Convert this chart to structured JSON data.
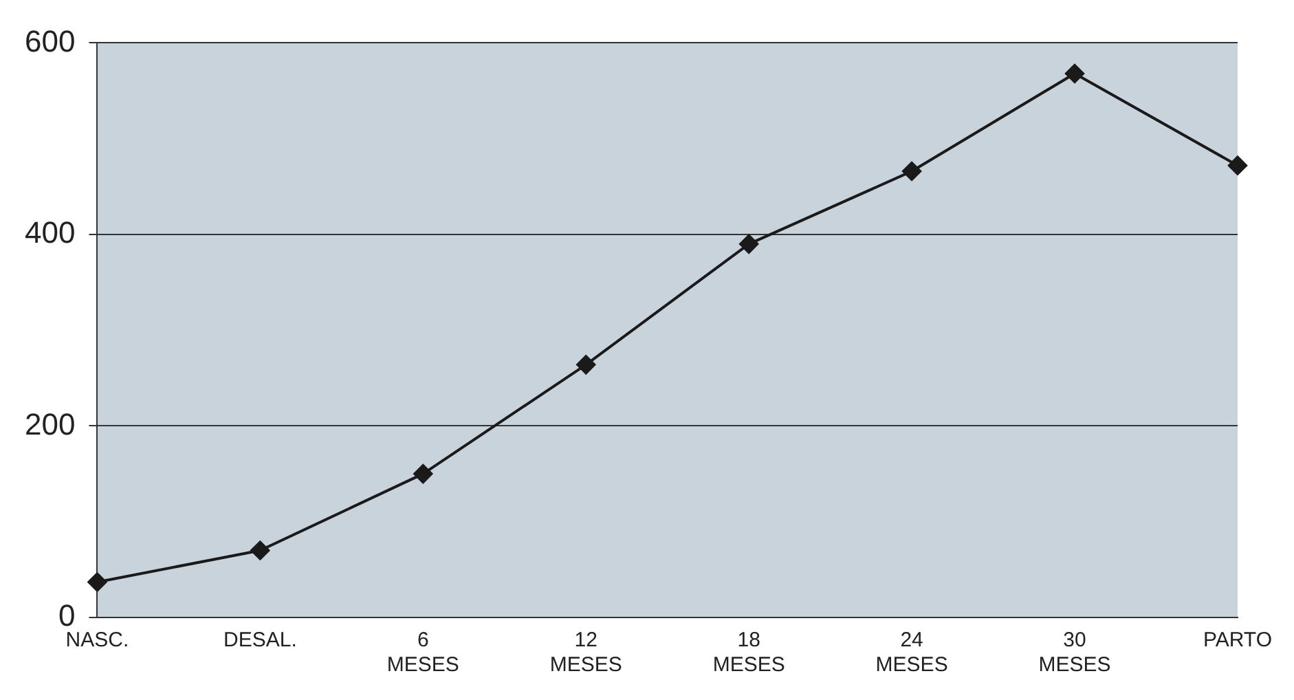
{
  "chart_data": {
    "type": "line",
    "categories": [
      "NASC.",
      "DESAL.",
      "6 MESES",
      "12 MESES",
      "18 MESES",
      "24 MESES",
      "30 MESES",
      "PARTO"
    ],
    "series": [
      {
        "color": "#1a1a1a",
        "values": [
          37,
          70,
          150,
          264,
          390,
          466,
          568,
          472
        ]
      }
    ],
    "ylim": [
      0,
      600
    ],
    "yticks": [
      0,
      200,
      400,
      600
    ],
    "grid": "y",
    "legend": false,
    "marker": "diamond",
    "line_style": "solid"
  }
}
